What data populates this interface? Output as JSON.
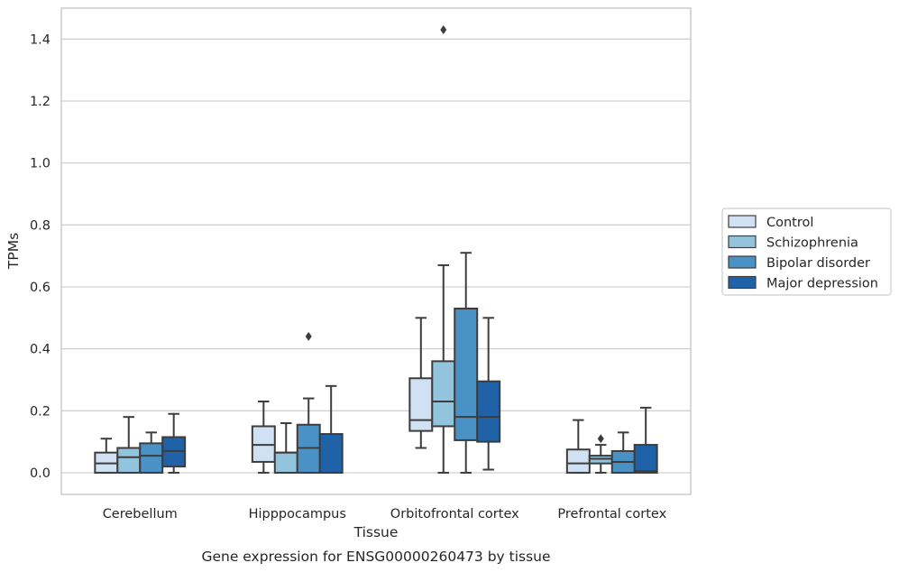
{
  "caption": "Gene expression for ENSG00000260473 by tissue",
  "chart_data": {
    "type": "boxplot",
    "xlabel": "Tissue",
    "ylabel": "TPMs",
    "ylim": [
      -0.07,
      1.5
    ],
    "yticks": [
      0.0,
      0.2,
      0.4,
      0.6,
      0.8,
      1.0,
      1.2,
      1.4
    ],
    "ytick_labels": [
      "0.0",
      "0.2",
      "0.4",
      "0.6",
      "0.8",
      "1.0",
      "1.2",
      "1.4"
    ],
    "grid": "horizontal",
    "legend_position": "right",
    "categories": [
      "Cerebellum",
      "Hipppocampus",
      "Orbitofrontal cortex",
      "Prefrontal cortex"
    ],
    "series": [
      {
        "name": "Control",
        "color": "#cfe1f2",
        "boxes": [
          {
            "whislo": 0.0,
            "q1": 0.0,
            "med": 0.03,
            "q3": 0.065,
            "whishi": 0.11,
            "fliers": []
          },
          {
            "whislo": 0.0,
            "q1": 0.035,
            "med": 0.09,
            "q3": 0.15,
            "whishi": 0.23,
            "fliers": []
          },
          {
            "whislo": 0.08,
            "q1": 0.135,
            "med": 0.17,
            "q3": 0.305,
            "whishi": 0.5,
            "fliers": []
          },
          {
            "whislo": 0.0,
            "q1": 0.0,
            "med": 0.03,
            "q3": 0.075,
            "whishi": 0.17,
            "fliers": []
          }
        ]
      },
      {
        "name": "Schizophrenia",
        "color": "#93c4de",
        "boxes": [
          {
            "whislo": 0.0,
            "q1": 0.0,
            "med": 0.05,
            "q3": 0.08,
            "whishi": 0.18,
            "fliers": []
          },
          {
            "whislo": 0.0,
            "q1": 0.0,
            "med": 0.065,
            "q3": 0.065,
            "whishi": 0.16,
            "fliers": []
          },
          {
            "whislo": 0.0,
            "q1": 0.15,
            "med": 0.23,
            "q3": 0.36,
            "whishi": 0.67,
            "fliers": [
              1.43
            ]
          },
          {
            "whislo": 0.0,
            "q1": 0.03,
            "med": 0.045,
            "q3": 0.055,
            "whishi": 0.09,
            "fliers": [
              0.11
            ]
          }
        ]
      },
      {
        "name": "Bipolar disorder",
        "color": "#4a91c6",
        "boxes": [
          {
            "whislo": 0.0,
            "q1": 0.0,
            "med": 0.055,
            "q3": 0.095,
            "whishi": 0.13,
            "fliers": []
          },
          {
            "whislo": 0.0,
            "q1": 0.0,
            "med": 0.08,
            "q3": 0.155,
            "whishi": 0.24,
            "fliers": [
              0.44
            ]
          },
          {
            "whislo": 0.0,
            "q1": 0.105,
            "med": 0.18,
            "q3": 0.53,
            "whishi": 0.71,
            "fliers": []
          },
          {
            "whislo": 0.0,
            "q1": 0.0,
            "med": 0.035,
            "q3": 0.07,
            "whishi": 0.13,
            "fliers": []
          }
        ]
      },
      {
        "name": "Major depression",
        "color": "#1f62a8",
        "boxes": [
          {
            "whislo": 0.0,
            "q1": 0.02,
            "med": 0.07,
            "q3": 0.115,
            "whishi": 0.19,
            "fliers": []
          },
          {
            "whislo": 0.0,
            "q1": 0.0,
            "med": 0.0,
            "q3": 0.125,
            "whishi": 0.28,
            "fliers": []
          },
          {
            "whislo": 0.01,
            "q1": 0.1,
            "med": 0.18,
            "q3": 0.295,
            "whishi": 0.5,
            "fliers": []
          },
          {
            "whislo": 0.0,
            "q1": 0.0,
            "med": 0.005,
            "q3": 0.09,
            "whishi": 0.21,
            "fliers": []
          }
        ]
      }
    ]
  }
}
